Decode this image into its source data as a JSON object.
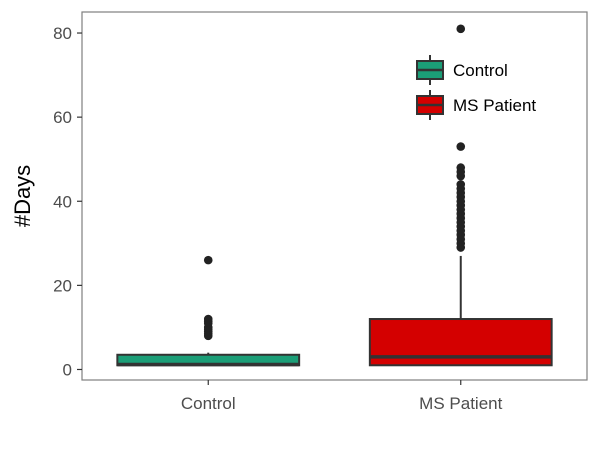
{
  "chart_data": {
    "type": "boxplot",
    "title": "",
    "xlabel": "",
    "ylabel": "#Days",
    "ylim": [
      -2.5,
      85
    ],
    "yticks": [
      0,
      20,
      40,
      60,
      80
    ],
    "grid": false,
    "legend_position": "top-right",
    "categories": [
      "Control",
      "MS Patient"
    ],
    "series": [
      {
        "name": "Control",
        "color": "#1b9e77",
        "min": 1,
        "q1": 1,
        "median": 1.2,
        "q3": 3.5,
        "whisker_high": 4,
        "outliers": [
          8,
          8.5,
          9,
          9.5,
          10,
          11,
          11.5,
          12,
          26
        ]
      },
      {
        "name": "MS Patient",
        "color": "#d40000",
        "min": 1,
        "q1": 1,
        "median": 3,
        "q3": 12,
        "whisker_high": 27,
        "outliers": [
          29,
          30,
          31,
          32,
          33,
          34,
          35,
          36,
          37,
          38,
          39,
          40,
          41,
          42,
          43,
          44,
          46,
          47,
          48,
          53,
          81
        ]
      }
    ]
  }
}
